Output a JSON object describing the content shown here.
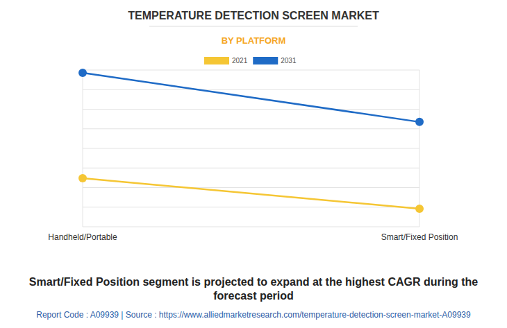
{
  "chart_data": {
    "type": "line",
    "title": "TEMPERATURE DETECTION SCREEN MARKET",
    "subtitle": "BY PLATFORM",
    "categories": [
      "Handheld/Portable",
      "Smart/Fixed Position"
    ],
    "series": [
      {
        "name": "2021",
        "color": "#f5c634",
        "marker": "circle",
        "values": [
          2.48,
          0.92
        ]
      },
      {
        "name": "2031",
        "color": "#1f6bc6",
        "marker": "circle",
        "values": [
          7.86,
          5.35
        ]
      }
    ],
    "ylim": [
      0,
      8
    ],
    "yticks": [
      0,
      1,
      2,
      3,
      4,
      5,
      6,
      7,
      8
    ],
    "grid": true,
    "tick_labels": "x",
    "legend": "top",
    "annotations": [
      "Smart/Fixed Position segment is projected to expand at the highest CAGR during the forecast period",
      "Report Code : A09939  |  Source : https://www.alliedmarketresearch.com/temperature-detection-screen-market-A09939"
    ]
  }
}
